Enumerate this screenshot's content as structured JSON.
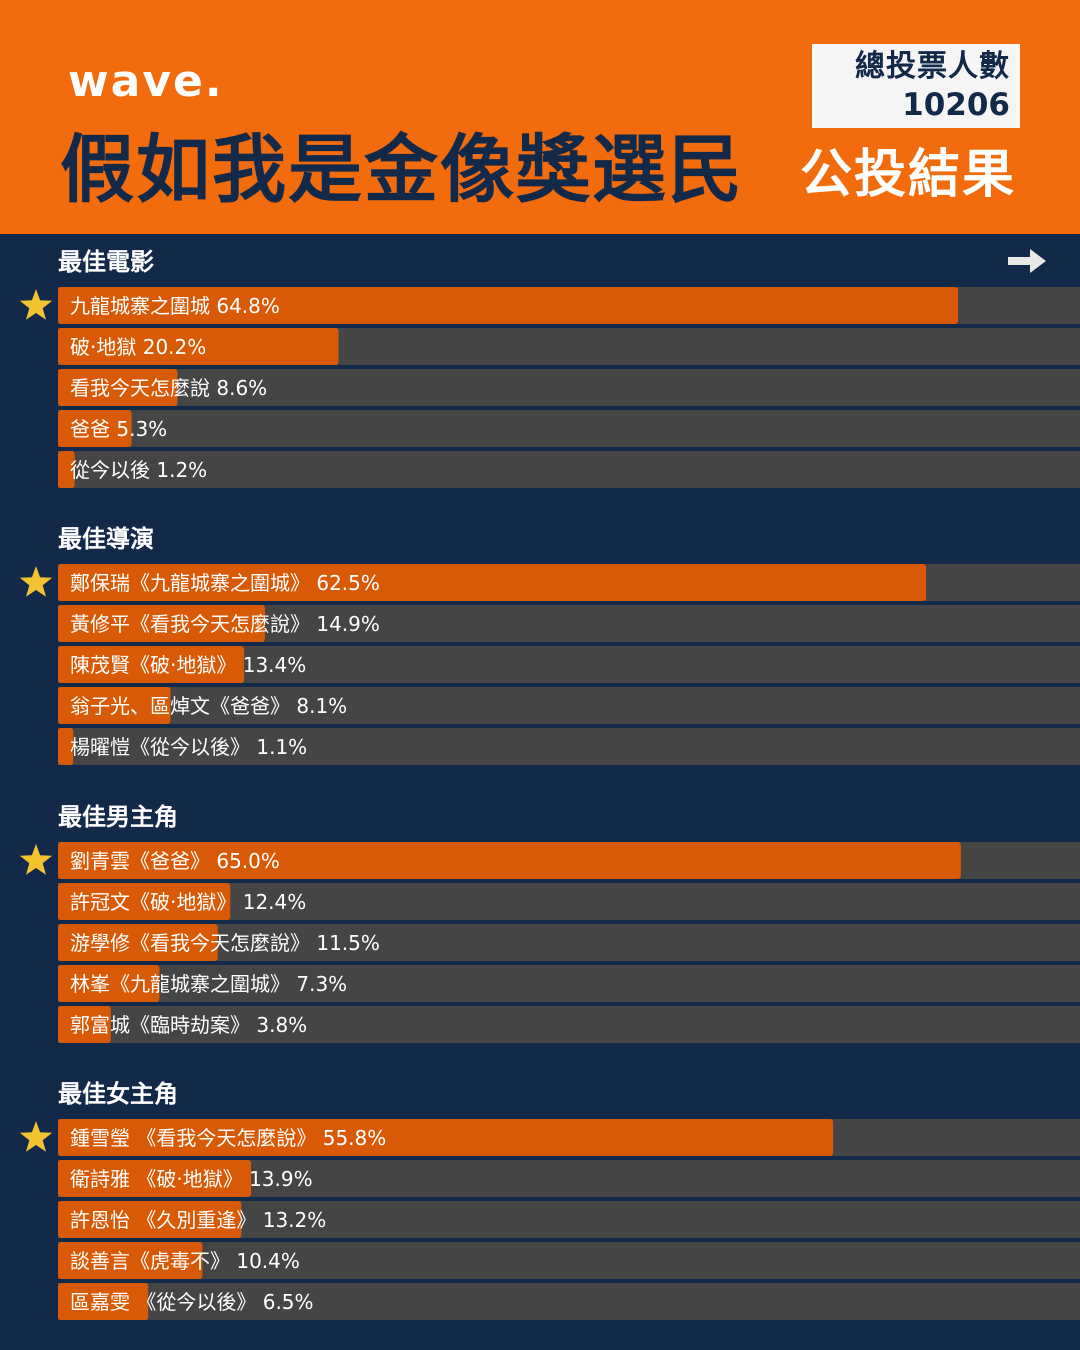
{
  "header": {
    "logo_text": "wave.",
    "headline": "假如我是金像獎選民",
    "total_label": "總投票人數",
    "total_value": "10206",
    "result_label": "公投結果"
  },
  "colors": {
    "background": "#13294a",
    "header": "#f26b0c",
    "bar_fill": "#d85a06",
    "bar_track": "#454545",
    "winner_star": "#f2c230"
  },
  "icons": {
    "next": "arrow-right-icon",
    "winner": "star-icon"
  },
  "chart_data": {
    "type": "bar",
    "orientation": "horizontal",
    "xlim": [
      0,
      100
    ],
    "unit": "%",
    "groups": [
      {
        "title": "最佳電影",
        "winner_index": 0,
        "items": [
          {
            "label": "九龍城寨之圍城 64.8%",
            "value": 64.8
          },
          {
            "label": "破·地獄 20.2%",
            "value": 20.2
          },
          {
            "label": "看我今天怎麼說 8.6%",
            "value": 8.6
          },
          {
            "label": "爸爸 5.3%",
            "value": 5.3
          },
          {
            "label": "從今以後 1.2%",
            "value": 1.2
          }
        ]
      },
      {
        "title": "最佳導演",
        "winner_index": 0,
        "items": [
          {
            "label": "鄭保瑞《九龍城寨之圍城》 62.5%",
            "value": 62.5
          },
          {
            "label": "黃修平《看我今天怎麼說》 14.9%",
            "value": 14.9
          },
          {
            "label": "陳茂賢《破·地獄》 13.4%",
            "value": 13.4
          },
          {
            "label": "翁子光、區焯文《爸爸》 8.1%",
            "value": 8.1
          },
          {
            "label": "楊曜愷《從今以後》 1.1%",
            "value": 1.1
          }
        ]
      },
      {
        "title": "最佳男主角",
        "winner_index": 0,
        "items": [
          {
            "label": "劉青雲《爸爸》 65.0%",
            "value": 65.0
          },
          {
            "label": "許冠文《破·地獄》 12.4%",
            "value": 12.4
          },
          {
            "label": "游學修《看我今天怎麼說》 11.5%",
            "value": 11.5
          },
          {
            "label": "林峯《九龍城寨之圍城》 7.3%",
            "value": 7.3
          },
          {
            "label": "郭富城《臨時劫案》 3.8%",
            "value": 3.8
          }
        ]
      },
      {
        "title": "最佳女主角",
        "winner_index": 0,
        "items": [
          {
            "label": "鍾雪瑩 《看我今天怎麼說》 55.8%",
            "value": 55.8
          },
          {
            "label": "衛詩雅 《破·地獄》 13.9%",
            "value": 13.9
          },
          {
            "label": "許恩怡 《久別重逢》 13.2%",
            "value": 13.2
          },
          {
            "label": "談善言《虎毒不》 10.4%",
            "value": 10.4
          },
          {
            "label": "區嘉雯 《從今以後》 6.5%",
            "value": 6.5
          }
        ]
      }
    ]
  }
}
